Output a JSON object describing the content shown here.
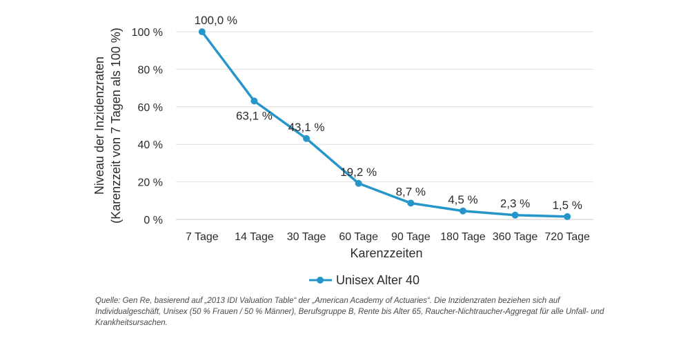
{
  "chart_data": {
    "type": "line",
    "categories": [
      "7 Tage",
      "14 Tage",
      "30 Tage",
      "60 Tage",
      "90 Tage",
      "180 Tage",
      "360 Tage",
      "720 Tage"
    ],
    "series": [
      {
        "name": "Unisex Alter 40",
        "values": [
          100.0,
          63.1,
          43.1,
          19.2,
          8.7,
          4.5,
          2.3,
          1.5
        ],
        "labels": [
          "100,0 %",
          "63,1 %",
          "43,1 %",
          "19,2 %",
          "8,7 %",
          "4,5 %",
          "2,3 %",
          "1,5 %"
        ]
      }
    ],
    "y_ticks": [
      "0 %",
      "20 %",
      "40 %",
      "60 %",
      "80 %",
      "100 %"
    ],
    "ylim": [
      0,
      100
    ],
    "xlabel": "Karenzzeiten",
    "ylabel_line1": "Niveau der Inzidenzraten",
    "ylabel_line2": "(Karenzzeit von 7 Tagen als 100 %)",
    "grid": true,
    "legend_position": "bottom",
    "line_color": "#2596c9"
  },
  "source_note": "Quelle: Gen Re, basierend auf „2013 IDI Valuation Table“ der „American Academy of Actuaries“. Die Inzidenzraten beziehen sich auf Individualgeschäft, Unisex (50 % Frauen / 50 % Männer), Berufsgruppe B, Rente bis Alter 65, Raucher-Nichtraucher-Aggregat für alle Unfall- und Krankheitsursachen."
}
